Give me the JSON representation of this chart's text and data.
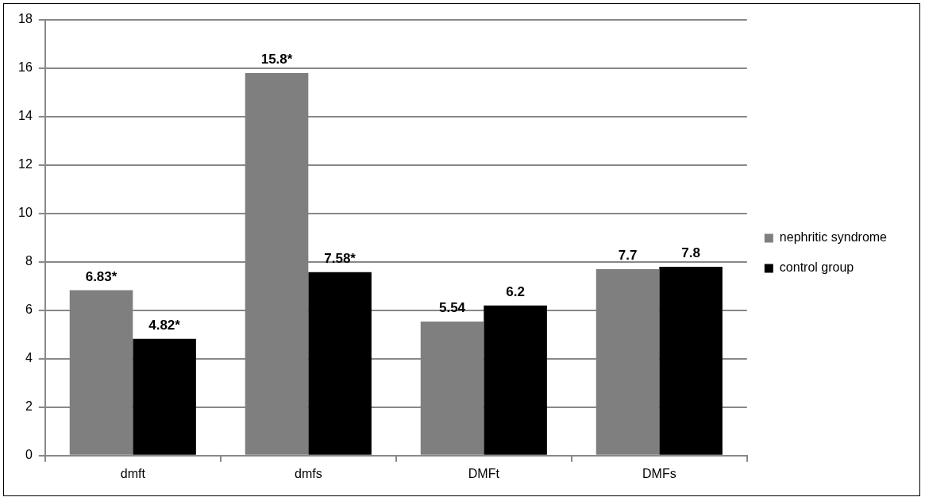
{
  "chart_data": {
    "type": "bar",
    "categories": [
      "dmft",
      "dmfs",
      "DMFt",
      "DMFs"
    ],
    "series": [
      {
        "name": "nephritic syndrome",
        "color": "#7f7f7f",
        "values": [
          6.83,
          15.8,
          5.54,
          7.7
        ],
        "value_labels": [
          "6.83*",
          "15.8*",
          "5.54",
          "7.7"
        ]
      },
      {
        "name": "control group",
        "color": "#000000",
        "values": [
          4.82,
          7.58,
          6.2,
          7.8
        ],
        "value_labels": [
          "4.82*",
          "7.58*",
          "6.2",
          "7.8"
        ]
      }
    ],
    "ylim": [
      0,
      18
    ],
    "yticks": [
      0,
      2,
      4,
      6,
      8,
      10,
      12,
      14,
      16,
      18
    ],
    "grid": "y",
    "legend": "right"
  }
}
